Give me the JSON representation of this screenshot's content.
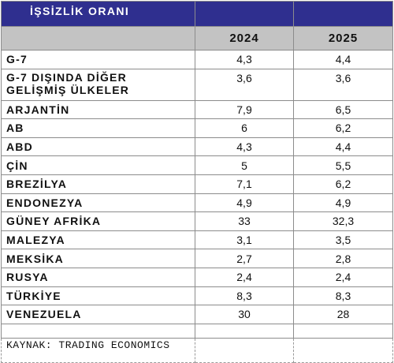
{
  "title": "İŞSİZLİK ORANI",
  "columns": [
    "2024",
    "2025"
  ],
  "rows": [
    {
      "country": "G-7",
      "y2024": "4,3",
      "y2025": "4,4"
    },
    {
      "country": "G-7 DIŞINDA DİĞER GELİŞMİŞ ÜLKELER",
      "y2024": "3,6",
      "y2025": "3,6"
    },
    {
      "country": "ARJANTİN",
      "y2024": "7,9",
      "y2025": "6,5"
    },
    {
      "country": "AB",
      "y2024": "6",
      "y2025": "6,2"
    },
    {
      "country": "ABD",
      "y2024": "4,3",
      "y2025": "4,4"
    },
    {
      "country": "ÇİN",
      "y2024": "5",
      "y2025": "5,5"
    },
    {
      "country": "BREZİLYA",
      "y2024": "7,1",
      "y2025": "6,2"
    },
    {
      "country": "ENDONEZYA",
      "y2024": "4,9",
      "y2025": "4,9"
    },
    {
      "country": "GÜNEY AFRİKA",
      "y2024": "33",
      "y2025": "32,3"
    },
    {
      "country": "MALEZYA",
      "y2024": "3,1",
      "y2025": "3,5"
    },
    {
      "country": "MEKSİKA",
      "y2024": "2,7",
      "y2025": "2,8"
    },
    {
      "country": "RUSYA",
      "y2024": "2,4",
      "y2025": "2,4"
    },
    {
      "country": "TÜRKİYE",
      "y2024": "8,3",
      "y2025": "8,3"
    },
    {
      "country": "VENEZUELA",
      "y2024": "30",
      "y2025": "28"
    }
  ],
  "source": "KAYNAK: TRADING ECONOMICS",
  "colors": {
    "title_bg": "#2f2f8f",
    "header_bg": "#c3c3c3",
    "title_text": "#ffffff"
  }
}
